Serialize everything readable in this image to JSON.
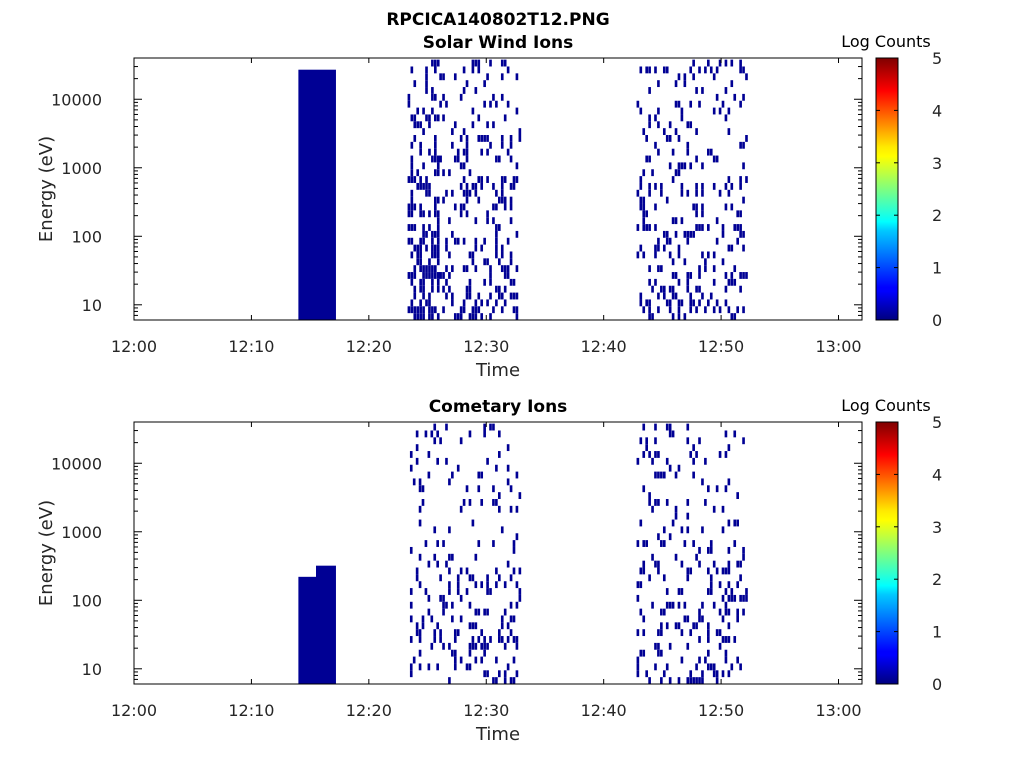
{
  "figure_title": "RPCICA140802T12.PNG",
  "chart_data": [
    {
      "type": "heatmap",
      "title": "Solar Wind Ions",
      "xlabel": "Time",
      "ylabel": "Energy (eV)",
      "colorbar_label": "Log Counts",
      "x_ticks": [
        "12:00",
        "12:10",
        "12:20",
        "12:30",
        "12:40",
        "12:50",
        "13:00"
      ],
      "x_range_minutes": [
        0,
        62
      ],
      "y_scale": "log",
      "y_ticks": [
        10,
        100,
        1000,
        10000
      ],
      "y_range": [
        6,
        40000
      ],
      "c_ticks": [
        0,
        1,
        2,
        3,
        4,
        5
      ],
      "c_range": [
        0,
        5
      ],
      "colormap": "jet",
      "dense_blocks": [
        {
          "t_start_min": 14.0,
          "t_end_min": 17.2,
          "e_min": 6,
          "e_max": 27000,
          "log_counts": 0.1
        }
      ],
      "sparse_regions": [
        {
          "t_start_min": 23.3,
          "t_end_min": 26.0,
          "density": 0.8,
          "log_counts": 0.1
        },
        {
          "t_start_min": 26.0,
          "t_end_min": 33.0,
          "density": 0.4,
          "log_counts": 0.1
        },
        {
          "t_start_min": 42.8,
          "t_end_min": 52.2,
          "density": 0.35,
          "log_counts": 0.1
        }
      ]
    },
    {
      "type": "heatmap",
      "title": "Cometary Ions",
      "xlabel": "Time",
      "ylabel": "Energy (eV)",
      "colorbar_label": "Log Counts",
      "x_ticks": [
        "12:00",
        "12:10",
        "12:20",
        "12:30",
        "12:40",
        "12:50",
        "13:00"
      ],
      "x_range_minutes": [
        0,
        62
      ],
      "y_scale": "log",
      "y_ticks": [
        10,
        100,
        1000,
        10000
      ],
      "y_range": [
        6,
        40000
      ],
      "c_ticks": [
        0,
        1,
        2,
        3,
        4,
        5
      ],
      "c_range": [
        0,
        5
      ],
      "colormap": "jet",
      "dense_blocks": [
        {
          "t_start_min": 14.0,
          "t_end_min": 15.5,
          "e_min": 6,
          "e_max": 220,
          "log_counts": 0.1
        },
        {
          "t_start_min": 15.5,
          "t_end_min": 17.2,
          "e_min": 6,
          "e_max": 320,
          "log_counts": 0.1
        }
      ],
      "sparse_regions": [
        {
          "t_start_min": 23.5,
          "t_end_min": 33.0,
          "density": 0.3,
          "log_counts": 0.1
        },
        {
          "t_start_min": 42.8,
          "t_end_min": 52.2,
          "density": 0.3,
          "log_counts": 0.1
        }
      ]
    }
  ]
}
